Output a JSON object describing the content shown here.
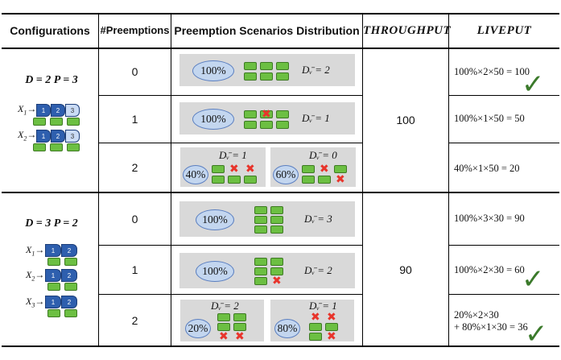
{
  "headers": {
    "configurations": "Configurations",
    "preemptions": "#Preemptions",
    "distribution": "Preemption Scenarios Distribution",
    "throughput": "THROUGHPUT",
    "liveput": "LIVEPUT"
  },
  "config1": {
    "title": "D = 2  P = 3",
    "x1": "X",
    "x1_sub": "1",
    "x2": "X",
    "x2_sub": "2",
    "stage_labels": [
      "1",
      "2",
      "3"
    ]
  },
  "config2": {
    "title": "D = 3  P = 2",
    "x1": "X",
    "x1_sub": "1",
    "x2": "X",
    "x2_sub": "2",
    "x3": "X",
    "x3_sub": "3",
    "stage_labels": [
      "1",
      "2"
    ]
  },
  "rows": [
    {
      "preemptions": "0",
      "prob": "100%",
      "d_label": "Dᵥ̄ = 2",
      "liveput": "100%×2×50 = 100",
      "check": true
    },
    {
      "preemptions": "1",
      "prob": "100%",
      "d_label": "Dᵥ̄ = 1",
      "liveput": "100%×1×50 = 50",
      "check": false
    },
    {
      "preemptions": "2",
      "prob_a": "40%",
      "d_label_a": "Dᵥ̄ = 1",
      "prob_b": "60%",
      "d_label_b": "Dᵥ̄ = 0",
      "liveput": "40%×1×50    = 20",
      "check": false
    },
    {
      "preemptions": "0",
      "prob": "100%",
      "d_label": "Dᵥ̄ = 3",
      "liveput": "100%×3×30 = 90",
      "check": false
    },
    {
      "preemptions": "1",
      "prob": "100%",
      "d_label": "Dᵥ̄ = 2",
      "liveput": "100%×2×30 = 60",
      "check": true
    },
    {
      "preemptions": "2",
      "prob_a": "20%",
      "d_label_a": "Dᵥ̄ = 2",
      "prob_b": "80%",
      "d_label_b": "Dᵥ̄ = 1",
      "liveput_line1": "20%×2×30",
      "liveput_line2": "+ 80%×1×30 = 36",
      "check": true
    }
  ],
  "throughput": {
    "group1": "100",
    "group2": "90"
  },
  "colors": {
    "block": "#6cbf42",
    "preempt_x": "#e8342b",
    "ellipse": "#c3d6ef",
    "stage": "#2e5fae",
    "check": "#3b7a2b"
  }
}
